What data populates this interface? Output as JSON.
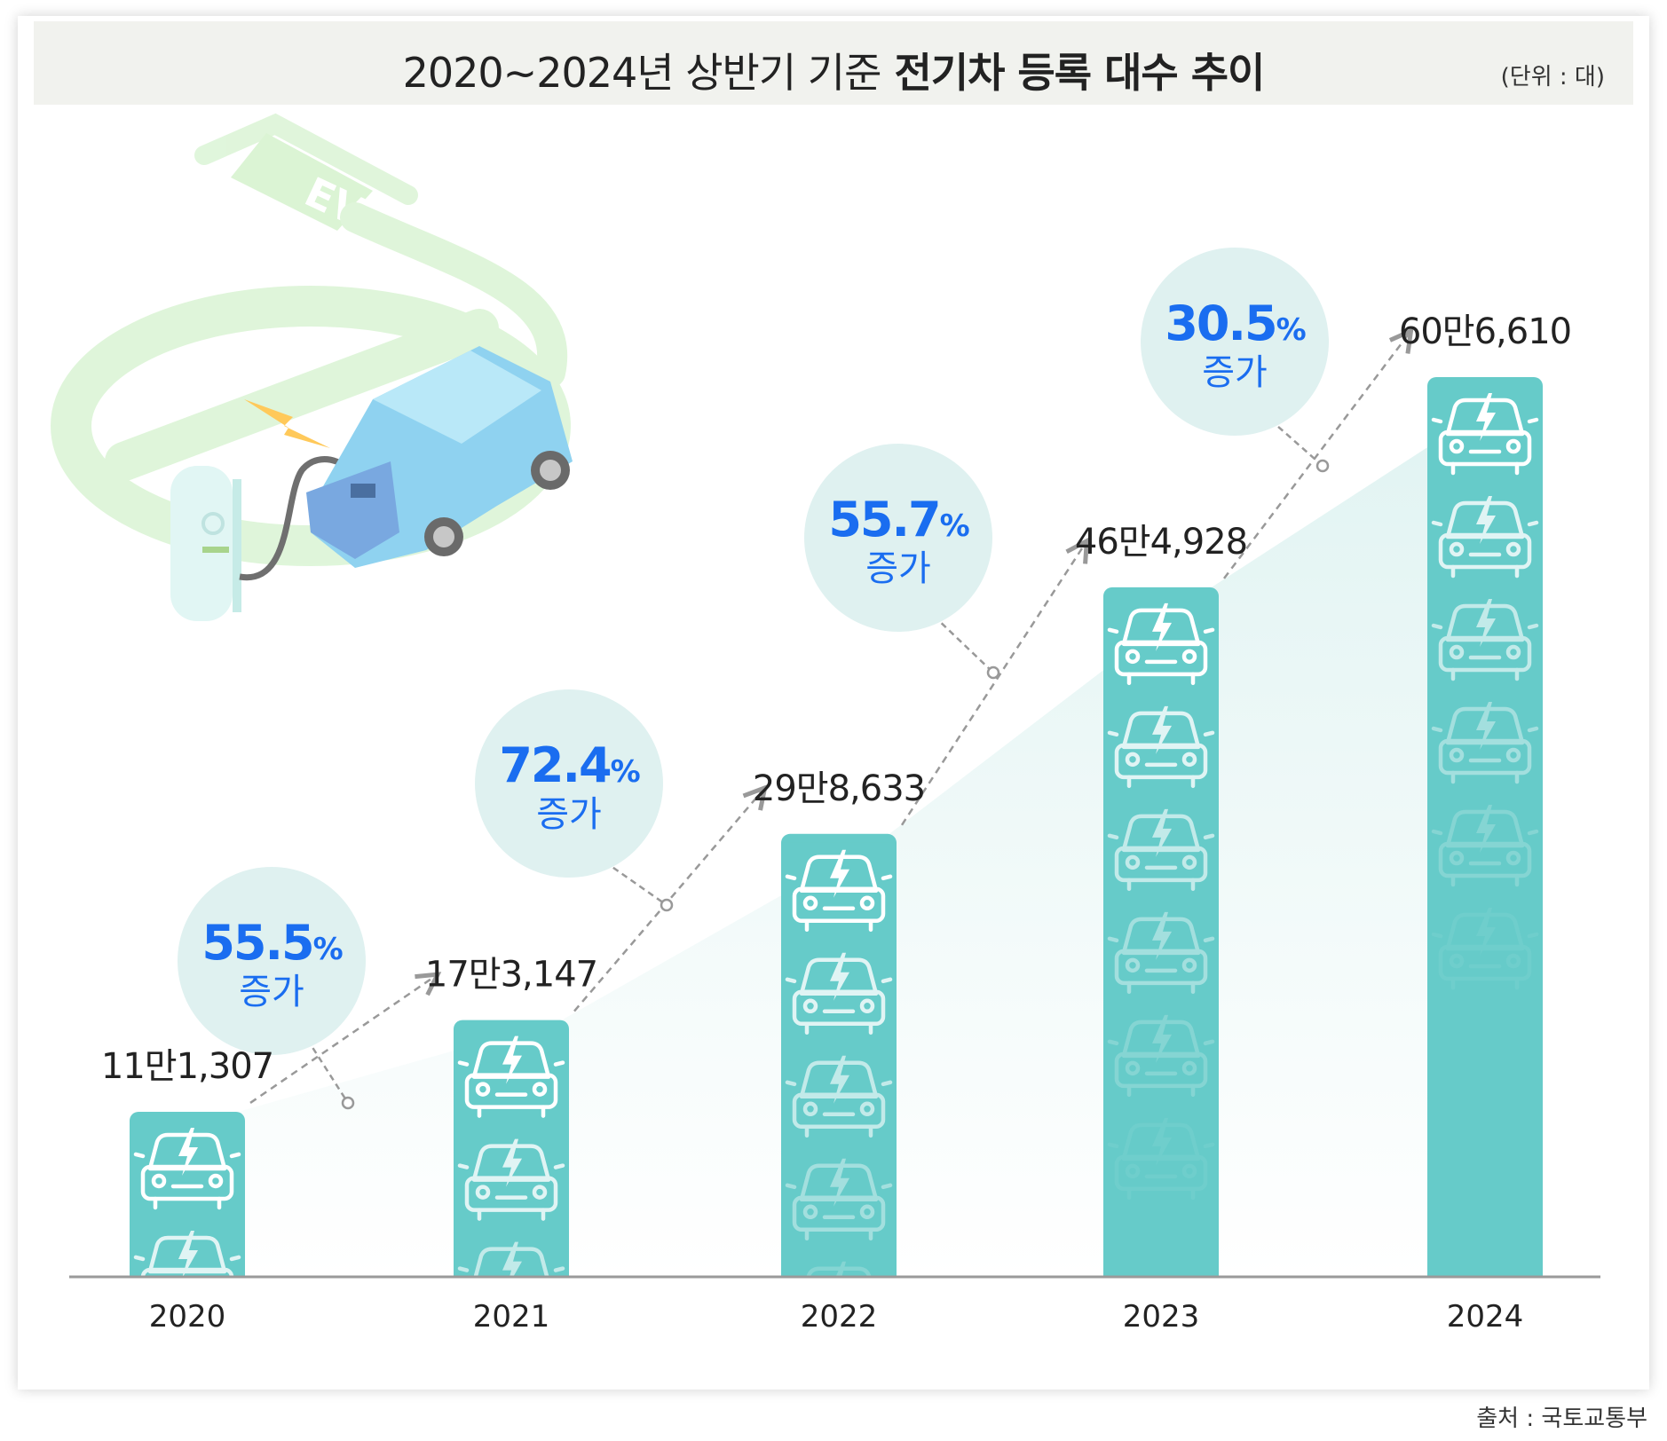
{
  "header": {
    "title_prefix": "2020~2024년 상반기 기준",
    "title_main": "전기차 등록 대수 추이",
    "unit": "(단위 : 대)"
  },
  "footer": {
    "source": "출처 : 국토교통부"
  },
  "colors": {
    "bar": "#66cbc9",
    "bubble": "#dff1f0",
    "growth_text": "#1a6df0",
    "area": "#e2f3f2"
  },
  "icons": {
    "bar_pictogram": "ev-car-icon",
    "illustration": "ev-charging-car-icon"
  },
  "chart_data": {
    "type": "bar",
    "title": "2020~2024년 상반기 기준 전기차 등록 대수 추이",
    "unit": "(단위 : 대)",
    "categories": [
      "2020",
      "2021",
      "2022",
      "2023",
      "2024"
    ],
    "values": [
      111307,
      173147,
      298633,
      464928,
      606610
    ],
    "value_labels": [
      "11만1,307",
      "17만3,147",
      "29만8,633",
      "46만4,928",
      "60만6,610"
    ],
    "growth": [
      {
        "value": "55.5",
        "sign": "%",
        "word": "증가"
      },
      {
        "value": "72.4",
        "sign": "%",
        "word": "증가"
      },
      {
        "value": "55.7",
        "sign": "%",
        "word": "증가"
      },
      {
        "value": "30.5",
        "sign": "%",
        "word": "증가"
      }
    ],
    "ylim": [
      0,
      606610
    ],
    "grid": false,
    "legend": "none"
  }
}
